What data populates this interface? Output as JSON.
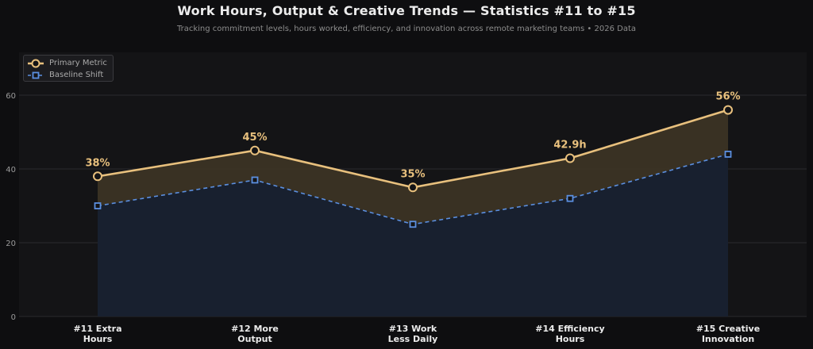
{
  "header": {
    "title": "Work Hours, Output & Creative Trends — Statistics #11 to #15",
    "subtitle": "Tracking commitment levels, hours worked, efficiency, and innovation across remote marketing teams  •  2026 Data"
  },
  "colors": {
    "primary": "#e8c07d",
    "baseline": "#5b8fe0",
    "primary_fill": "#3d3425",
    "baseline_fill": "#18202f",
    "plot_bg": "#141416",
    "grid": "#2a2a2d",
    "tick_text": "#9a9a9a",
    "category_text": "#ececec"
  },
  "chart_data": {
    "type": "line",
    "categories": [
      [
        "#11 Extra",
        "Hours"
      ],
      [
        "#12 More",
        "Output"
      ],
      [
        "#13 Work",
        "Less Daily"
      ],
      [
        "#14 Efficiency",
        "Hours"
      ],
      [
        "#15 Creative",
        "Innovation"
      ]
    ],
    "series": [
      {
        "name": "Primary Metric",
        "values": [
          38,
          45,
          35,
          42.9,
          56
        ],
        "labels": [
          "38%",
          "45%",
          "35%",
          "42.9h",
          "56%"
        ],
        "style": "solid",
        "marker": "circle"
      },
      {
        "name": "Baseline Shift",
        "values": [
          30,
          37,
          25,
          32,
          44
        ],
        "style": "dashed",
        "marker": "square"
      }
    ],
    "yticks": [
      0,
      20,
      40,
      60
    ],
    "ylim": [
      0,
      60
    ],
    "grid": true,
    "legend_position": "top-left"
  }
}
